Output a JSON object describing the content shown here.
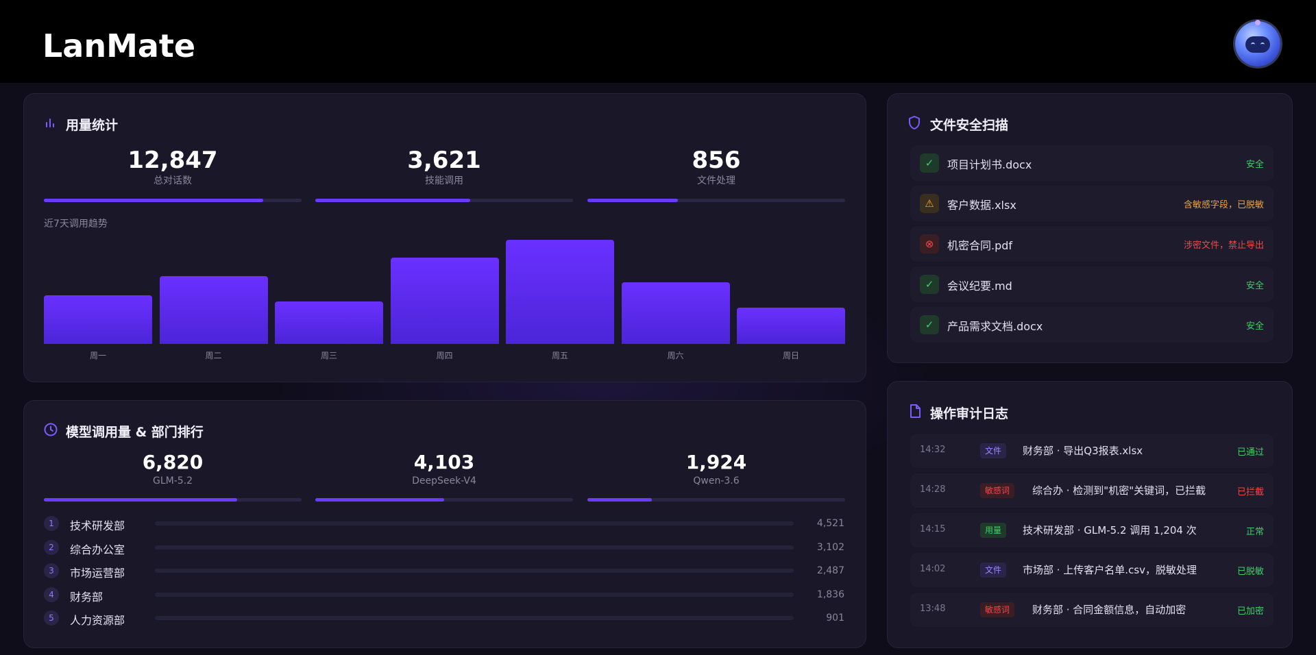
{
  "header": {
    "logo": "LanMate"
  },
  "usage": {
    "title": "用量统计",
    "stats": [
      {
        "value": "12,847",
        "label": "总对话数",
        "progress": 0.85
      },
      {
        "value": "3,621",
        "label": "技能调用",
        "progress": 0.6
      },
      {
        "value": "856",
        "label": "文件处理",
        "progress": 0.35
      }
    ],
    "trend_label": "近7天调用趋势"
  },
  "chart_data": {
    "type": "bar",
    "categories": [
      "周一",
      "周二",
      "周三",
      "周四",
      "周五",
      "周六",
      "周日"
    ],
    "values": [
      47,
      65,
      41,
      83,
      100,
      59,
      35
    ],
    "ylim": [
      0,
      100
    ],
    "title": "",
    "xlabel": "",
    "ylabel": ""
  },
  "models": {
    "title": "模型调用量 & 部门排行",
    "stats": [
      {
        "value": "6,820",
        "label": "GLM-5.2",
        "progress": 0.75
      },
      {
        "value": "4,103",
        "label": "DeepSeek-V4",
        "progress": 0.5
      },
      {
        "value": "1,924",
        "label": "Qwen-3.6",
        "progress": 0.25
      }
    ],
    "departments": [
      {
        "rank": "1",
        "name": "技术研发部",
        "value": "4,521"
      },
      {
        "rank": "2",
        "name": "综合办公室",
        "value": "3,102"
      },
      {
        "rank": "3",
        "name": "市场运营部",
        "value": "2,487"
      },
      {
        "rank": "4",
        "name": "财务部",
        "value": "1,836"
      },
      {
        "rank": "5",
        "name": "人力资源部",
        "value": "901"
      }
    ]
  },
  "scan": {
    "title": "文件安全扫描",
    "files": [
      {
        "name": "项目计划书.docx",
        "status": "安全",
        "level": "safe",
        "icon": "check-icon"
      },
      {
        "name": "客户数据.xlsx",
        "status": "含敏感字段，已脱敏",
        "level": "warn",
        "icon": "warning-icon"
      },
      {
        "name": "机密合同.pdf",
        "status": "涉密文件，禁止导出",
        "level": "danger",
        "icon": "x-circle-icon"
      },
      {
        "name": "会议纪要.md",
        "status": "安全",
        "level": "safe",
        "icon": "check-icon"
      },
      {
        "name": "产品需求文档.docx",
        "status": "安全",
        "level": "safe",
        "icon": "check-icon"
      }
    ]
  },
  "audit": {
    "title": "操作审计日志",
    "logs": [
      {
        "time": "14:32",
        "tag": "文件",
        "tag_type": "file",
        "text": "财务部 · 导出Q3报表.xlsx",
        "status": "已通过"
      },
      {
        "time": "14:28",
        "tag": "敏感词",
        "tag_type": "sensitive",
        "text": "综合办 · 检测到\"机密\"关键词，已拦截",
        "status": "已拦截"
      },
      {
        "time": "14:15",
        "tag": "用量",
        "tag_type": "usage",
        "text": "技术研发部 · GLM-5.2 调用 1,204 次",
        "status": "正常"
      },
      {
        "time": "14:02",
        "tag": "文件",
        "tag_type": "file",
        "text": "市场部 · 上传客户名单.csv，脱敏处理",
        "status": "已脱敏"
      },
      {
        "time": "13:48",
        "tag": "敏感词",
        "tag_type": "sensitive",
        "text": "财务部 · 合同金额信息，自动加密",
        "status": "已加密"
      }
    ]
  },
  "colors": {
    "accent": "#6a3cff",
    "safe": "#3fcf6a",
    "warn": "#f0a23a",
    "danger": "#f0484a"
  }
}
